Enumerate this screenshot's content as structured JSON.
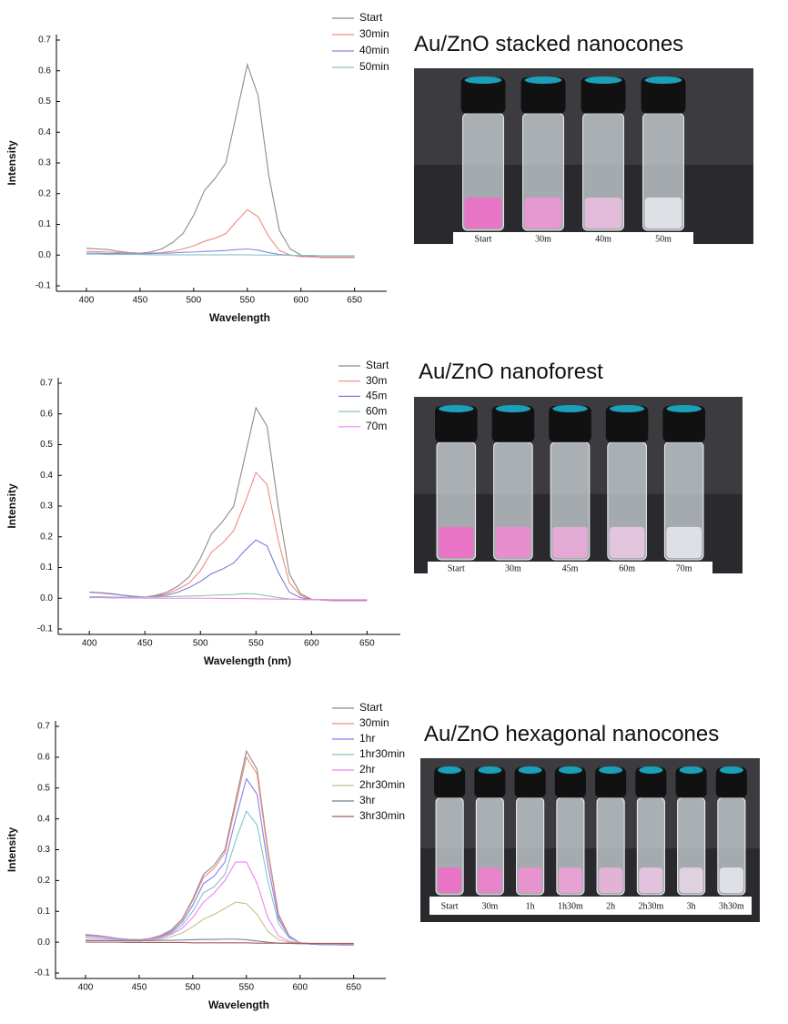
{
  "chart_data": [
    {
      "type": "line",
      "x_label": "Wavelength",
      "y_label": "Intensity",
      "x": [
        400,
        410,
        420,
        430,
        440,
        450,
        460,
        470,
        480,
        490,
        500,
        510,
        520,
        530,
        540,
        550,
        560,
        570,
        580,
        590,
        600,
        610,
        620,
        630,
        640,
        650
      ],
      "xlim": [
        372,
        680
      ],
      "xticks": [
        400,
        450,
        500,
        550,
        600,
        650
      ],
      "ylim": [
        -0.1,
        0.7
      ],
      "yticks": [
        -0.1,
        {
          "value": 0,
          "label": "0.0"
        },
        0.1,
        0.2,
        0.3,
        0.4,
        0.5,
        0.6,
        0.7
      ],
      "grid": false,
      "legend": "upper right",
      "series": [
        {
          "name": "Start",
          "color": "#8c8c8c",
          "values": [
            0.022,
            0.02,
            0.018,
            0.012,
            0.008,
            0.006,
            0.01,
            0.02,
            0.04,
            0.07,
            0.13,
            0.21,
            0.25,
            0.3,
            0.46,
            0.62,
            0.52,
            0.26,
            0.08,
            0.02,
            0.0,
            -0.005,
            -0.008,
            -0.008,
            -0.008,
            -0.008
          ]
        },
        {
          "name": "30min",
          "color": "#f08a80",
          "values": [
            0.012,
            0.011,
            0.01,
            0.008,
            0.006,
            0.005,
            0.006,
            0.008,
            0.012,
            0.02,
            0.03,
            0.045,
            0.055,
            0.07,
            0.11,
            0.148,
            0.125,
            0.06,
            0.015,
            0.0,
            -0.005,
            -0.006,
            -0.007,
            -0.007,
            -0.007,
            -0.007
          ]
        },
        {
          "name": "40min",
          "color": "#8888e0",
          "values": [
            0.006,
            0.006,
            0.005,
            0.005,
            0.004,
            0.004,
            0.005,
            0.006,
            0.007,
            0.009,
            0.01,
            0.012,
            0.013,
            0.015,
            0.018,
            0.02,
            0.016,
            0.008,
            0.002,
            0.0,
            -0.002,
            -0.002,
            -0.003,
            -0.003,
            -0.003,
            -0.003
          ]
        },
        {
          "name": "50min",
          "color": "#86c4c4",
          "values": [
            0.003,
            0.003,
            0.002,
            0.002,
            0.002,
            0.002,
            0.001,
            0.001,
            0.001,
            0.001,
            0.001,
            0.001,
            0.001,
            0.001,
            0.001,
            0.001,
            0.0,
            0.0,
            0.0,
            -0.001,
            -0.001,
            -0.001,
            -0.002,
            -0.002,
            -0.002,
            -0.002
          ]
        }
      ]
    },
    {
      "type": "line",
      "x_label": "Wavelength (nm)",
      "y_label": "Intensity",
      "x": [
        400,
        410,
        420,
        430,
        440,
        450,
        460,
        470,
        480,
        490,
        500,
        510,
        520,
        530,
        540,
        550,
        560,
        570,
        580,
        590,
        600,
        610,
        620,
        630,
        640,
        650
      ],
      "xlim": [
        372,
        680
      ],
      "xticks": [
        400,
        450,
        500,
        550,
        600,
        650
      ],
      "ylim": [
        -0.1,
        0.7
      ],
      "yticks": [
        -0.1,
        {
          "value": 0,
          "label": "0.0"
        },
        0.1,
        0.2,
        0.3,
        0.4,
        0.5,
        0.6,
        0.7
      ],
      "grid": false,
      "legend": "upper right",
      "series": [
        {
          "name": "Start",
          "color": "#8c8c8c",
          "values": [
            0.02,
            0.018,
            0.015,
            0.01,
            0.006,
            0.004,
            0.01,
            0.02,
            0.04,
            0.07,
            0.13,
            0.21,
            0.25,
            0.3,
            0.46,
            0.62,
            0.56,
            0.3,
            0.08,
            0.015,
            -0.003,
            -0.006,
            -0.008,
            -0.008,
            -0.008,
            -0.008
          ]
        },
        {
          "name": "30m",
          "color": "#f08a80",
          "values": [
            0.02,
            0.018,
            0.015,
            0.01,
            0.006,
            0.004,
            0.008,
            0.015,
            0.03,
            0.05,
            0.09,
            0.15,
            0.18,
            0.22,
            0.31,
            0.41,
            0.37,
            0.19,
            0.05,
            0.01,
            -0.004,
            -0.006,
            -0.007,
            -0.007,
            -0.007,
            -0.007
          ]
        },
        {
          "name": "45m",
          "color": "#7a7ad8",
          "values": [
            0.02,
            0.017,
            0.014,
            0.01,
            0.006,
            0.004,
            0.006,
            0.01,
            0.02,
            0.035,
            0.055,
            0.08,
            0.095,
            0.115,
            0.155,
            0.19,
            0.17,
            0.085,
            0.02,
            0.002,
            -0.004,
            -0.005,
            -0.006,
            -0.006,
            -0.006,
            -0.006
          ]
        },
        {
          "name": "60m",
          "color": "#8cc4a8",
          "values": [
            0.005,
            0.005,
            0.004,
            0.004,
            0.004,
            0.004,
            0.004,
            0.005,
            0.006,
            0.007,
            0.008,
            0.01,
            0.011,
            0.012,
            0.015,
            0.014,
            0.008,
            0.002,
            -0.002,
            -0.004,
            -0.005,
            -0.005,
            -0.005,
            -0.005,
            -0.005,
            -0.005
          ]
        },
        {
          "name": "70m",
          "color": "#f080f0",
          "values": [
            0.002,
            0.002,
            0.001,
            0.001,
            0.001,
            0.0,
            0.0,
            0.0,
            0.0,
            0.0,
            0.0,
            0.0,
            -0.001,
            -0.001,
            -0.001,
            -0.002,
            -0.002,
            -0.003,
            -0.003,
            -0.004,
            -0.004,
            -0.004,
            -0.005,
            -0.005,
            -0.005,
            -0.005
          ]
        }
      ]
    },
    {
      "type": "line",
      "x_label": "Wavelength",
      "y_label": "Intensity",
      "x": [
        400,
        410,
        420,
        430,
        440,
        450,
        460,
        470,
        480,
        490,
        500,
        510,
        520,
        530,
        540,
        550,
        560,
        570,
        580,
        590,
        600,
        610,
        620,
        630,
        640,
        650
      ],
      "xlim": [
        372,
        680
      ],
      "xticks": [
        400,
        450,
        500,
        550,
        600,
        650
      ],
      "ylim": [
        -0.1,
        0.7
      ],
      "yticks": [
        -0.1,
        {
          "value": 0,
          "label": "0.0"
        },
        0.1,
        0.2,
        0.3,
        0.4,
        0.5,
        0.6,
        0.7
      ],
      "grid": false,
      "legend": "upper right",
      "series": [
        {
          "name": "Start",
          "color": "#8c8c8c",
          "values": [
            0.025,
            0.022,
            0.018,
            0.012,
            0.009,
            0.008,
            0.012,
            0.022,
            0.04,
            0.075,
            0.14,
            0.22,
            0.25,
            0.3,
            0.46,
            0.62,
            0.56,
            0.3,
            0.09,
            0.02,
            -0.002,
            -0.006,
            -0.008,
            -0.008,
            -0.009,
            -0.009
          ]
        },
        {
          "name": "30min",
          "color": "#f08a80",
          "values": [
            0.025,
            0.022,
            0.018,
            0.012,
            0.009,
            0.008,
            0.012,
            0.021,
            0.038,
            0.072,
            0.135,
            0.21,
            0.24,
            0.29,
            0.445,
            0.6,
            0.545,
            0.29,
            0.085,
            0.02,
            -0.002,
            -0.006,
            -0.008,
            -0.008,
            -0.009,
            -0.009
          ]
        },
        {
          "name": "1hr",
          "color": "#8080f0",
          "values": [
            0.022,
            0.02,
            0.016,
            0.011,
            0.008,
            0.007,
            0.01,
            0.018,
            0.034,
            0.065,
            0.12,
            0.19,
            0.215,
            0.26,
            0.4,
            0.53,
            0.48,
            0.25,
            0.075,
            0.018,
            -0.002,
            -0.006,
            -0.008,
            -0.008,
            -0.008,
            -0.008
          ]
        },
        {
          "name": "1hr30min",
          "color": "#86c4c4",
          "values": [
            0.02,
            0.018,
            0.015,
            0.01,
            0.007,
            0.006,
            0.009,
            0.016,
            0.03,
            0.055,
            0.1,
            0.16,
            0.18,
            0.22,
            0.33,
            0.425,
            0.38,
            0.2,
            0.06,
            0.014,
            -0.002,
            -0.005,
            -0.007,
            -0.007,
            -0.007,
            -0.007
          ]
        },
        {
          "name": "2hr",
          "color": "#f080f0",
          "values": [
            0.015,
            0.013,
            0.011,
            0.008,
            0.006,
            0.005,
            0.008,
            0.014,
            0.026,
            0.045,
            0.08,
            0.13,
            0.16,
            0.2,
            0.26,
            0.26,
            0.19,
            0.08,
            0.02,
            0.003,
            -0.003,
            -0.005,
            -0.006,
            -0.006,
            -0.006,
            -0.006
          ]
        },
        {
          "name": "2hr30min",
          "color": "#c4c08a",
          "values": [
            0.008,
            0.007,
            0.006,
            0.005,
            0.004,
            0.004,
            0.006,
            0.01,
            0.018,
            0.03,
            0.05,
            0.075,
            0.09,
            0.11,
            0.13,
            0.125,
            0.09,
            0.035,
            0.008,
            0.0,
            -0.003,
            -0.004,
            -0.005,
            -0.005,
            -0.005,
            -0.005
          ]
        },
        {
          "name": "3hr",
          "color": "#7c7c9c",
          "values": [
            0.005,
            0.005,
            0.005,
            0.005,
            0.005,
            0.005,
            0.005,
            0.006,
            0.006,
            0.007,
            0.008,
            0.009,
            0.009,
            0.01,
            0.01,
            0.008,
            0.004,
            0.0,
            -0.003,
            -0.004,
            -0.005,
            -0.005,
            -0.005,
            -0.005,
            -0.005,
            -0.005
          ]
        },
        {
          "name": "3hr30min",
          "color": "#a85a5a",
          "values": [
            0.0,
            0.0,
            0.0,
            0.0,
            -0.001,
            -0.001,
            -0.001,
            -0.001,
            -0.001,
            -0.001,
            -0.002,
            -0.002,
            -0.002,
            -0.002,
            -0.002,
            -0.002,
            -0.003,
            -0.003,
            -0.003,
            -0.003,
            -0.003,
            -0.004,
            -0.004,
            -0.004,
            -0.004,
            -0.004
          ]
        }
      ]
    }
  ],
  "photos": [
    {
      "title": "Au/ZnO stacked nanocones",
      "labels": [
        "Start",
        "30m",
        "40m",
        "50m"
      ]
    },
    {
      "title": "Au/ZnO nanoforest",
      "labels": [
        "Start",
        "30m",
        "45m",
        "60m",
        "70m"
      ]
    },
    {
      "title": "Au/ZnO hexagonal nanocones",
      "labels": [
        "Start",
        "30m",
        "1h",
        "1h30m",
        "2h",
        "2h30m",
        "3h",
        "3h30m"
      ]
    }
  ]
}
